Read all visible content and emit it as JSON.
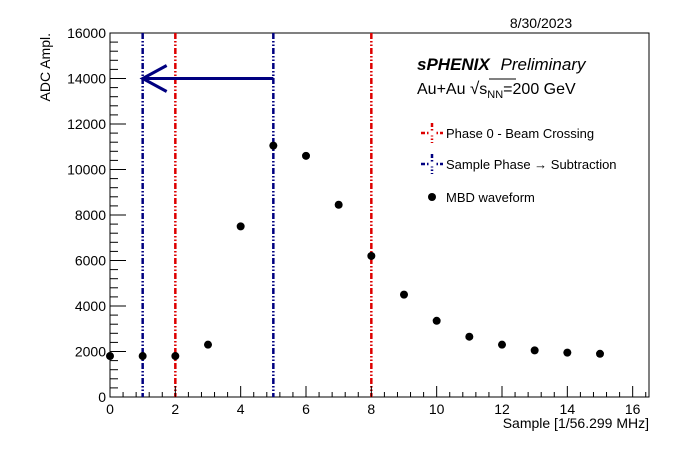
{
  "date_label": "8/30/2023",
  "chart_data": {
    "type": "scatter",
    "title": "",
    "xlabel": "Sample [1/56.299 MHz]",
    "ylabel": "ADC Ampl.",
    "xlim": [
      0,
      16.5
    ],
    "ylim": [
      0,
      16000
    ],
    "x_ticks": [
      0,
      2,
      4,
      6,
      8,
      10,
      12,
      14,
      16
    ],
    "y_ticks": [
      0,
      2000,
      4000,
      6000,
      8000,
      10000,
      12000,
      14000,
      16000
    ],
    "series": [
      {
        "name": "MBD waveform",
        "color": "#000000",
        "marker": "filled-circle",
        "points": [
          {
            "x": 0,
            "y": 1800
          },
          {
            "x": 1,
            "y": 1800
          },
          {
            "x": 2,
            "y": 1800
          },
          {
            "x": 3,
            "y": 2300
          },
          {
            "x": 4,
            "y": 7500
          },
          {
            "x": 5,
            "y": 11050
          },
          {
            "x": 6,
            "y": 10600
          },
          {
            "x": 7,
            "y": 8450
          },
          {
            "x": 8,
            "y": 6200
          },
          {
            "x": 9,
            "y": 4500
          },
          {
            "x": 10,
            "y": 3350
          },
          {
            "x": 11,
            "y": 2650
          },
          {
            "x": 12,
            "y": 2300
          },
          {
            "x": 13,
            "y": 2050
          },
          {
            "x": 14,
            "y": 1950
          },
          {
            "x": 15,
            "y": 1900
          }
        ]
      }
    ],
    "vertical_lines": [
      {
        "x": 1,
        "color": "#000080",
        "style": "dash-dot",
        "group": "Sample Phase → Subtraction"
      },
      {
        "x": 5,
        "color": "#000080",
        "style": "dash-dot",
        "group": "Sample Phase → Subtraction"
      },
      {
        "x": 2,
        "color": "#dd0000",
        "style": "dash-dot",
        "group": "Phase 0 - Beam Crossing"
      },
      {
        "x": 8,
        "color": "#dd0000",
        "style": "dash-dot",
        "group": "Phase 0 - Beam Crossing"
      }
    ],
    "arrow": {
      "from_x": 5,
      "to_x": 1,
      "y": 14000,
      "color": "#000080"
    },
    "legend": {
      "placement": "top-right",
      "entries": [
        {
          "label": "Phase 0 - Beam Crossing",
          "color": "#dd0000",
          "kind": "dash-line"
        },
        {
          "label": "Sample Phase → Subtraction",
          "color": "#000080",
          "kind": "dash-line"
        },
        {
          "label": "MBD waveform",
          "color": "#000000",
          "kind": "marker"
        }
      ]
    },
    "annotations": {
      "experiment": "sPHENIX",
      "status": "Preliminary",
      "system_prefix": "Au+Au ",
      "sqrt_symbol": "√",
      "s_letter": "s",
      "s_subscript": "NN",
      "energy_suffix": "=200 GeV"
    },
    "grid": false
  }
}
